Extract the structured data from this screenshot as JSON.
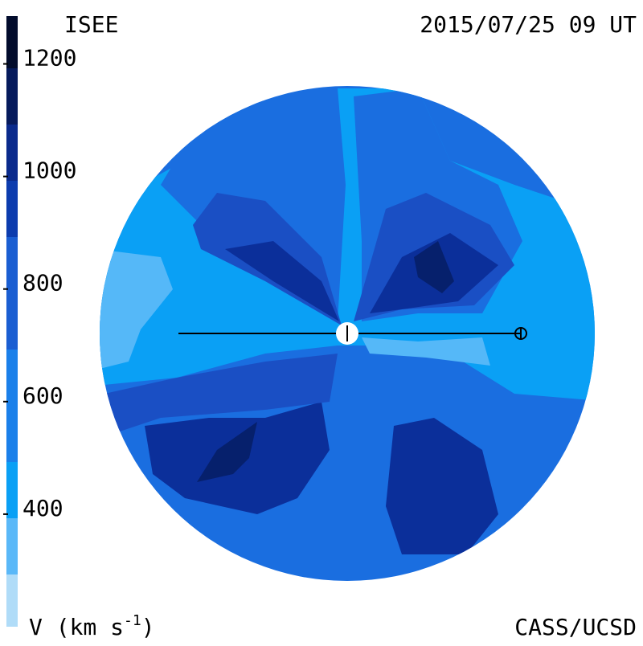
{
  "header": {
    "title": "ISEE",
    "timestamp": "2015/07/25 09 UT"
  },
  "colorbar": {
    "vlim": [
      200,
      1285
    ],
    "ticks": [
      400,
      600,
      800,
      1000,
      1200
    ],
    "label": {
      "text": "V (km s",
      "superscript": "-1",
      "close": ")"
    }
  },
  "footer": {
    "credit": "CASS/UCSD"
  }
}
